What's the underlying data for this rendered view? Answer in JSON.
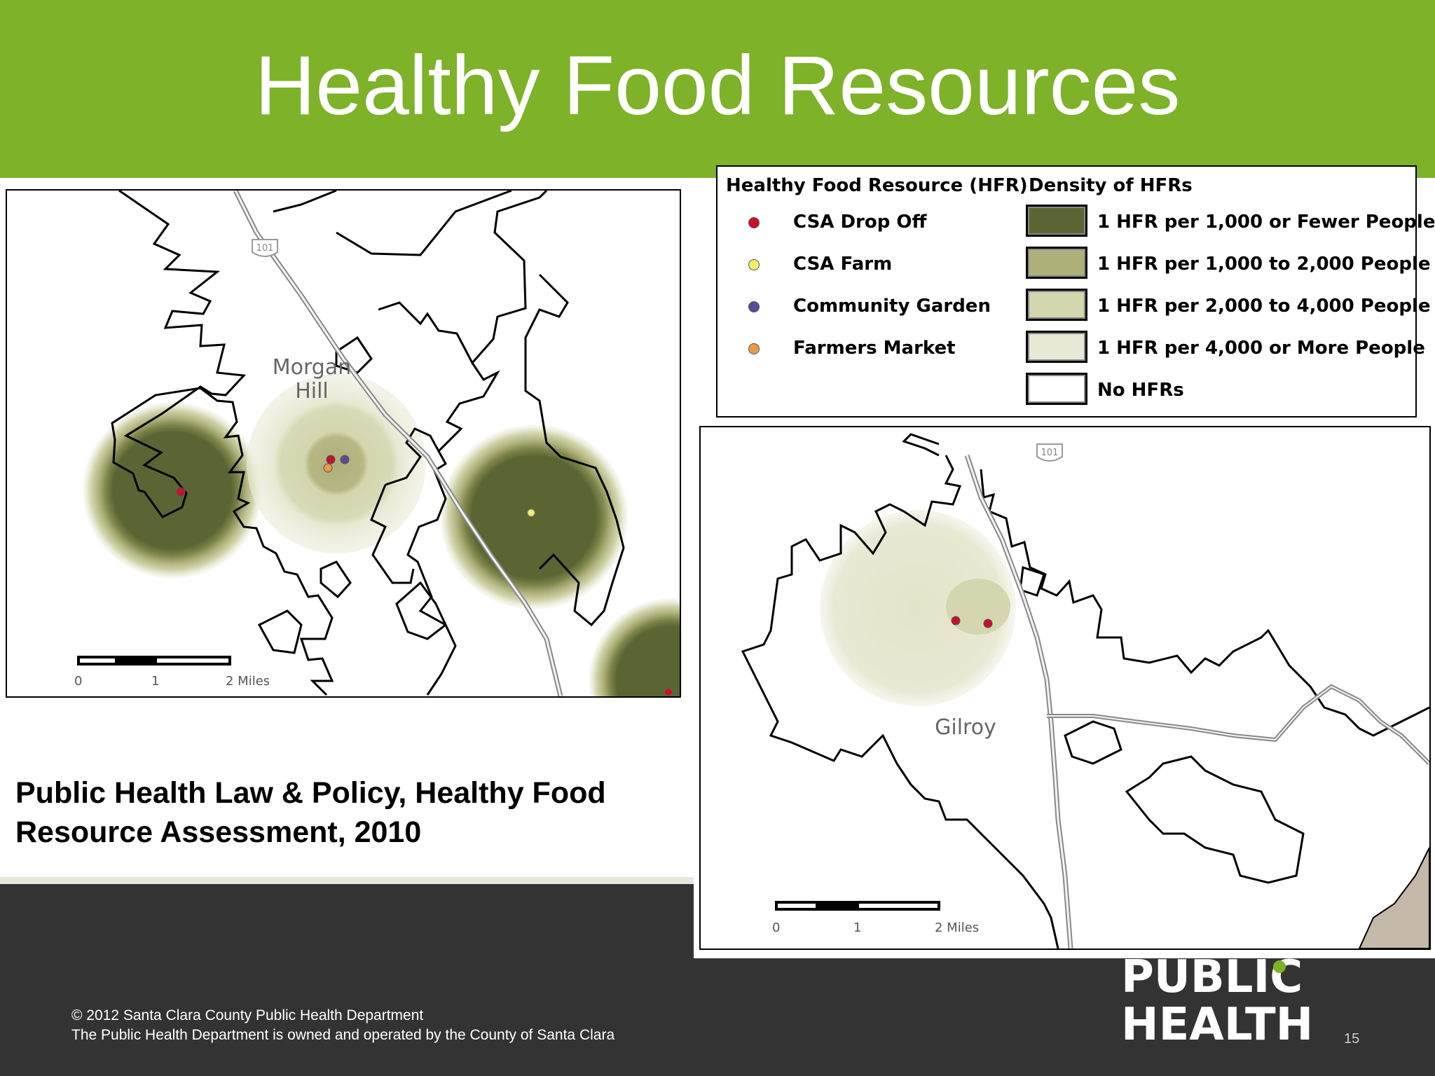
{
  "slide": {
    "title": "Healthy Food Resources",
    "citation": "Public Health Law & Policy, Healthy Food Resource Assessment, 2010",
    "copyright_line1": "© 2012 Santa Clara County Public Health Department",
    "copyright_line2": "The Public Health Department is owned and operated by the County of Santa Clara",
    "page_number": "15",
    "logo_line1": "PUBLIC",
    "logo_line2": "HEALTH"
  },
  "colors": {
    "header_green": "#7db229",
    "footer_dark": "#333333",
    "csa_drop_off": "#c8102e",
    "csa_farm": "#f2ef6a",
    "community_garden": "#5b4a96",
    "farmers_market": "#e99a4a",
    "density_1": "#5b6534",
    "density_2": "#aeb07a",
    "density_3": "#d3d6ae",
    "density_4": "#e8e9d4",
    "density_none": "#ffffff"
  },
  "legend": {
    "resource_heading": "Healthy Food Resource (HFR)",
    "density_heading": "Density of HFRs",
    "resource_types": [
      {
        "label": "CSA Drop Off"
      },
      {
        "label": "CSA Farm"
      },
      {
        "label": "Community Garden"
      },
      {
        "label": "Farmers Market"
      }
    ],
    "density_levels": [
      {
        "label": "1 HFR per 1,000 or Fewer People"
      },
      {
        "label": "1 HFR per 1,000 to 2,000 People"
      },
      {
        "label": "1 HFR  per 2,000 to 4,000 People"
      },
      {
        "label": "1 HFR per 4,000 or More People"
      },
      {
        "label": "No HFRs"
      }
    ]
  },
  "map_morgan_hill": {
    "place_name_line1": "Morgan",
    "place_name_line2": "Hill",
    "highway_shield": "101",
    "scale_labels": [
      "0",
      "1",
      "2  Miles"
    ]
  },
  "map_gilroy": {
    "place_name": "Gilroy",
    "highway_shield": "101",
    "scale_labels": [
      "0",
      "1",
      "2  Miles"
    ]
  }
}
